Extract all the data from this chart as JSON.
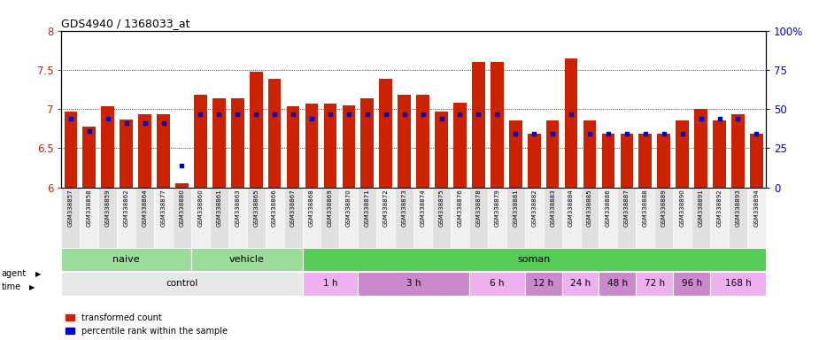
{
  "title": "GDS4940 / 1368033_at",
  "samples": [
    "GSM338857",
    "GSM338858",
    "GSM338859",
    "GSM338862",
    "GSM338864",
    "GSM338877",
    "GSM338880",
    "GSM338860",
    "GSM338861",
    "GSM338863",
    "GSM338865",
    "GSM338866",
    "GSM338867",
    "GSM338868",
    "GSM338869",
    "GSM338870",
    "GSM338871",
    "GSM338872",
    "GSM338873",
    "GSM338874",
    "GSM338875",
    "GSM338876",
    "GSM338878",
    "GSM338879",
    "GSM338881",
    "GSM338882",
    "GSM338883",
    "GSM338884",
    "GSM338885",
    "GSM338886",
    "GSM338887",
    "GSM338888",
    "GSM338889",
    "GSM338890",
    "GSM338891",
    "GSM338892",
    "GSM338893",
    "GSM338894"
  ],
  "red_values": [
    6.97,
    6.78,
    7.04,
    6.87,
    6.93,
    6.93,
    6.05,
    7.18,
    7.14,
    7.14,
    7.47,
    7.38,
    7.03,
    7.07,
    7.07,
    7.05,
    7.14,
    7.38,
    7.18,
    7.18,
    6.97,
    7.08,
    7.6,
    7.6,
    6.85,
    6.68,
    6.85,
    7.65,
    6.85,
    6.68,
    6.68,
    6.68,
    6.68,
    6.85,
    7.0,
    6.85,
    6.93,
    6.68
  ],
  "blue_values": [
    6.88,
    6.72,
    6.88,
    6.82,
    6.82,
    6.82,
    6.28,
    6.93,
    6.93,
    6.93,
    6.93,
    6.93,
    6.93,
    6.88,
    6.93,
    6.93,
    6.93,
    6.93,
    6.93,
    6.93,
    6.88,
    6.93,
    6.93,
    6.93,
    6.68,
    6.68,
    6.68,
    6.93,
    6.68,
    6.68,
    6.68,
    6.68,
    6.68,
    6.68,
    6.88,
    6.88,
    6.88,
    6.68
  ],
  "ymin": 6.0,
  "ymax": 8.0,
  "yticks": [
    6.0,
    6.5,
    7.0,
    7.5,
    8.0
  ],
  "right_yticks": [
    0,
    25,
    50,
    75,
    100
  ],
  "agent_labels": [
    {
      "label": "naive",
      "start": 0,
      "end": 7,
      "color": "#99DD99"
    },
    {
      "label": "vehicle",
      "start": 7,
      "end": 13,
      "color": "#99DD99"
    },
    {
      "label": "soman",
      "start": 13,
      "end": 38,
      "color": "#55CC55"
    }
  ],
  "time_groups": [
    {
      "label": "control",
      "start": 0,
      "end": 13,
      "color": "#E8E8E8"
    },
    {
      "label": "1 h",
      "start": 13,
      "end": 16,
      "color": "#EEB0EE"
    },
    {
      "label": "3 h",
      "start": 16,
      "end": 22,
      "color": "#CC88CC"
    },
    {
      "label": "6 h",
      "start": 22,
      "end": 25,
      "color": "#EEB0EE"
    },
    {
      "label": "12 h",
      "start": 25,
      "end": 27,
      "color": "#CC88CC"
    },
    {
      "label": "24 h",
      "start": 27,
      "end": 29,
      "color": "#EEB0EE"
    },
    {
      "label": "48 h",
      "start": 29,
      "end": 31,
      "color": "#CC88CC"
    },
    {
      "label": "72 h",
      "start": 31,
      "end": 33,
      "color": "#EEB0EE"
    },
    {
      "label": "96 h",
      "start": 33,
      "end": 35,
      "color": "#CC88CC"
    },
    {
      "label": "168 h",
      "start": 35,
      "end": 38,
      "color": "#EEB0EE"
    }
  ],
  "bar_color": "#CC2200",
  "dot_color": "#0000CC",
  "plot_bg": "#FFFFFF",
  "xlabel_bg_odd": "#E0E0E0",
  "xlabel_bg_even": "#F0F0F0"
}
